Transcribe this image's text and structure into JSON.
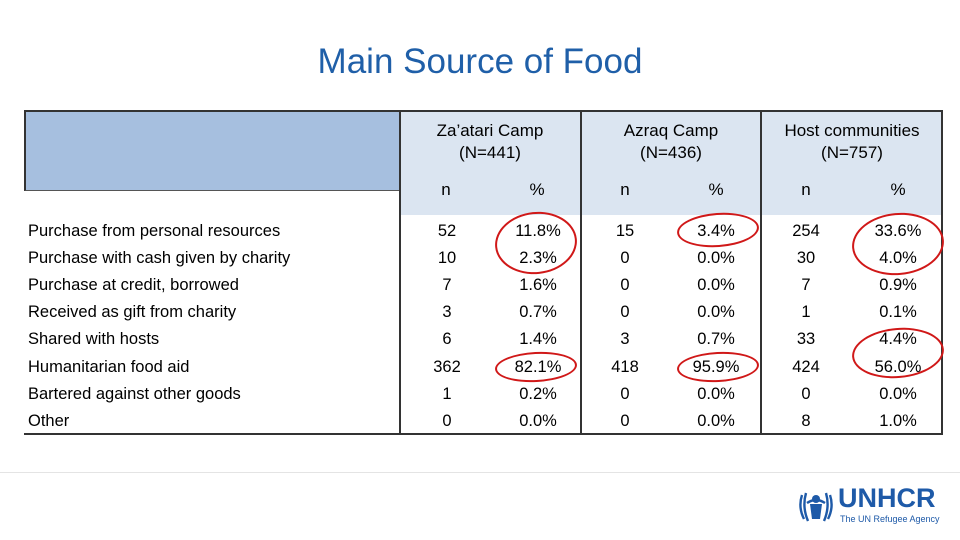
{
  "title": "Main Source of Food",
  "columns": [
    {
      "name": "Za’atari Camp",
      "n_label": "(N=441)"
    },
    {
      "name": "Azraq Camp",
      "n_label": "(N=436)"
    },
    {
      "name": "Host communities",
      "n_label": "(N=757)"
    }
  ],
  "subheaders": {
    "n": "n",
    "pct": "%"
  },
  "rows": [
    {
      "label": "Purchase from personal resources",
      "values": [
        "52",
        "11.8%",
        "15",
        "3.4%",
        "254",
        "33.6%"
      ]
    },
    {
      "label": "Purchase with cash given by charity",
      "values": [
        "10",
        "2.3%",
        "0",
        "0.0%",
        "30",
        "4.0%"
      ]
    },
    {
      "label": "Purchase at credit, borrowed",
      "values": [
        "7",
        "1.6%",
        "0",
        "0.0%",
        "7",
        "0.9%"
      ]
    },
    {
      "label": "Received as gift from charity",
      "values": [
        "3",
        "0.7%",
        "0",
        "0.0%",
        "1",
        "0.1%"
      ]
    },
    {
      "label": "Shared with hosts",
      "values": [
        "6",
        "1.4%",
        "3",
        "0.7%",
        "33",
        "4.4%"
      ]
    },
    {
      "label": "Humanitarian food aid",
      "values": [
        "362",
        "82.1%",
        "418",
        "95.9%",
        "424",
        "56.0%"
      ]
    },
    {
      "label": "Bartered against other goods",
      "values": [
        "1",
        "0.2%",
        "0",
        "0.0%",
        "0",
        "0.0%"
      ]
    },
    {
      "label": "Other",
      "values": [
        "0",
        "0.0%",
        "0",
        "0.0%",
        "8",
        "1.0%"
      ]
    }
  ],
  "logo": {
    "name": "UNHCR",
    "tagline": "The UN Refugee Agency"
  },
  "colors": {
    "title": "#1f5fa8",
    "header_blue": "#a6bfdf",
    "header_light": "#dbe5f1",
    "annotation": "#d01818"
  }
}
